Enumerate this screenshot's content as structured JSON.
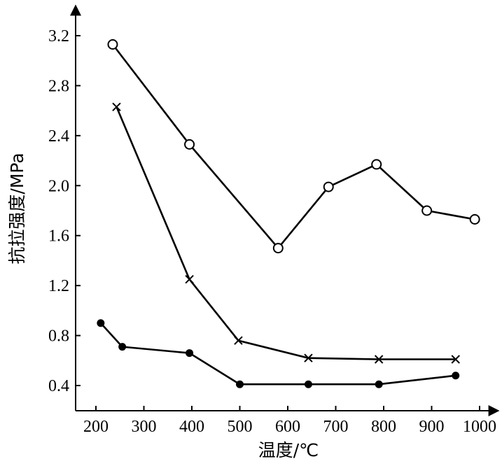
{
  "chart_data": {
    "type": "line",
    "xlabel": "温度/℃",
    "ylabel": "抗拉强度/MPa",
    "xlim": [
      150,
      1000
    ],
    "ylim": [
      0.4,
      3.2
    ],
    "xticks": [
      "200",
      "300",
      "400",
      "500",
      "600",
      "700",
      "800",
      "900",
      "1000"
    ],
    "yticks": [
      "0.4",
      "0.8",
      "1.2",
      "1.6",
      "2.0",
      "2.4",
      "2.8",
      "3.2"
    ],
    "grid": false,
    "series": [
      {
        "marker": "open-circle",
        "x": [
          235,
          395,
          580,
          685,
          785,
          890,
          990
        ],
        "y": [
          3.13,
          2.33,
          1.5,
          1.99,
          2.17,
          1.8,
          1.73
        ]
      },
      {
        "marker": "x",
        "x": [
          243,
          395,
          497,
          643,
          790,
          950
        ],
        "y": [
          2.63,
          1.25,
          0.76,
          0.62,
          0.61,
          0.61
        ]
      },
      {
        "marker": "filled-circle",
        "x": [
          210,
          255,
          395,
          500,
          643,
          790,
          950
        ],
        "y": [
          0.9,
          0.71,
          0.66,
          0.41,
          0.41,
          0.41,
          0.48
        ]
      }
    ]
  }
}
